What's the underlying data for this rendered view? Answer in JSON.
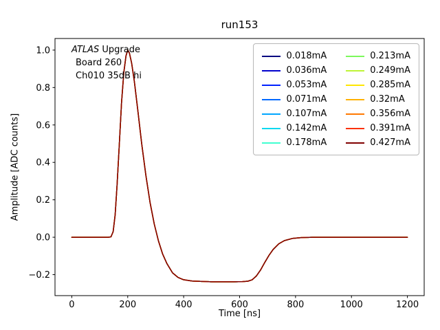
{
  "chart_data": {
    "type": "line",
    "title": "run153",
    "xlabel": "Time [ns]",
    "ylabel": "Amplitude [ADC counts]",
    "xlim": [
      -60,
      1260
    ],
    "ylim": [
      -0.312,
      1.062
    ],
    "xticks": [
      0,
      200,
      400,
      600,
      800,
      1000,
      1200
    ],
    "yticks": [
      -0.2,
      0.0,
      0.2,
      0.4,
      0.6,
      0.8,
      1.0
    ],
    "xtick_labels": [
      "0",
      "200",
      "400",
      "600",
      "800",
      "1000",
      "1200"
    ],
    "ytick_labels": [
      "−0.2",
      "0.0",
      "0.2",
      "0.4",
      "0.6",
      "0.8",
      "1.0"
    ],
    "grid": false,
    "legend_position": "upper right",
    "legend_columns": 2,
    "annotation": {
      "atlas": "ATLAS",
      "upgrade": " Upgrade",
      "line2": "Board 260",
      "line3": "Ch010 35dB hi"
    },
    "series": [
      {
        "label": "0.018mA",
        "color": "#000080"
      },
      {
        "label": "0.036mA",
        "color": "#0000cd"
      },
      {
        "label": "0.053mA",
        "color": "#0020ff"
      },
      {
        "label": "0.071mA",
        "color": "#0068ff"
      },
      {
        "label": "0.107mA",
        "color": "#00a6ff"
      },
      {
        "label": "0.142mA",
        "color": "#00d8f0"
      },
      {
        "label": "0.178mA",
        "color": "#40ffd0"
      },
      {
        "label": "0.213mA",
        "color": "#7cf85c"
      },
      {
        "label": "0.249mA",
        "color": "#bef434"
      },
      {
        "label": "0.285mA",
        "color": "#ffe600"
      },
      {
        "label": "0.32mA",
        "color": "#ffb000"
      },
      {
        "label": "0.356mA",
        "color": "#ff7800"
      },
      {
        "label": "0.391mA",
        "color": "#fb3000"
      },
      {
        "label": "0.427mA",
        "color": "#800000"
      }
    ],
    "waveform": {
      "x": [
        0,
        50,
        100,
        130,
        140,
        148,
        155,
        162,
        170,
        178,
        186,
        194,
        200,
        206,
        214,
        224,
        236,
        250,
        265,
        280,
        295,
        310,
        325,
        340,
        360,
        380,
        400,
        430,
        460,
        500,
        540,
        580,
        610,
        630,
        645,
        660,
        675,
        690,
        705,
        720,
        740,
        760,
        790,
        820,
        860,
        900,
        1000,
        1100,
        1200
      ],
      "y": [
        0,
        0,
        0,
        0,
        0.002,
        0.03,
        0.12,
        0.28,
        0.5,
        0.72,
        0.88,
        0.97,
        1.0,
        0.985,
        0.93,
        0.83,
        0.68,
        0.5,
        0.33,
        0.185,
        0.07,
        -0.02,
        -0.09,
        -0.14,
        -0.19,
        -0.215,
        -0.227,
        -0.234,
        -0.236,
        -0.238,
        -0.238,
        -0.238,
        -0.237,
        -0.235,
        -0.227,
        -0.207,
        -0.175,
        -0.135,
        -0.097,
        -0.065,
        -0.035,
        -0.018,
        -0.006,
        -0.002,
        0,
        0,
        0,
        0,
        0
      ]
    }
  }
}
